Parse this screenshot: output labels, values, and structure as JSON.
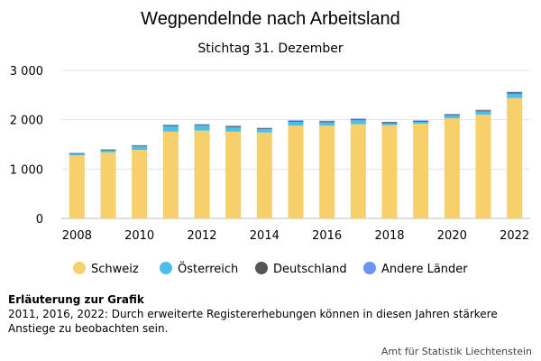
{
  "chart_data": {
    "type": "bar",
    "stacked": true,
    "title": "Wegpendelnde nach Arbeitsland",
    "subtitle": "Stichtag 31. Dezember",
    "categories": [
      "2008",
      "2009",
      "2010",
      "2011",
      "2012",
      "2013",
      "2014",
      "2015",
      "2016",
      "2017",
      "2018",
      "2019",
      "2020",
      "2021",
      "2022"
    ],
    "x_tick_labels": [
      "2008",
      "2010",
      "2012",
      "2014",
      "2016",
      "2018",
      "2020",
      "2022"
    ],
    "y_tick_labels": [
      "0",
      "1 000",
      "2 000",
      "3 000"
    ],
    "y_ticks": [
      0,
      1000,
      2000,
      3000
    ],
    "ylim": [
      0,
      3000
    ],
    "grid": true,
    "legend_position": "bottom",
    "series": [
      {
        "name": "Schweiz",
        "color": "#f5d06b",
        "values": [
          1280,
          1340,
          1390,
          1760,
          1780,
          1760,
          1740,
          1880,
          1880,
          1910,
          1890,
          1920,
          2030,
          2100,
          2440
        ]
      },
      {
        "name": "Österreich",
        "color": "#4bbfe8",
        "values": [
          30,
          40,
          70,
          110,
          100,
          90,
          70,
          80,
          70,
          80,
          40,
          40,
          60,
          70,
          90
        ]
      },
      {
        "name": "Deutschland",
        "color": "#555555",
        "values": [
          12,
          14,
          15,
          18,
          18,
          18,
          16,
          18,
          18,
          20,
          18,
          18,
          18,
          20,
          22
        ]
      },
      {
        "name": "Andere Länder",
        "color": "#6b93f0",
        "values": [
          8,
          8,
          10,
          12,
          12,
          12,
          10,
          12,
          12,
          12,
          10,
          10,
          10,
          12,
          14
        ]
      }
    ]
  },
  "note": {
    "title": "Erläuterung zur Grafik",
    "text": "2011, 2016, 2022: Durch erweiterte Registererhebungen können in diesen Jahren stärkere Anstiege zu beobachten sein."
  },
  "source": "Amt für Statistik Liechtenstein"
}
